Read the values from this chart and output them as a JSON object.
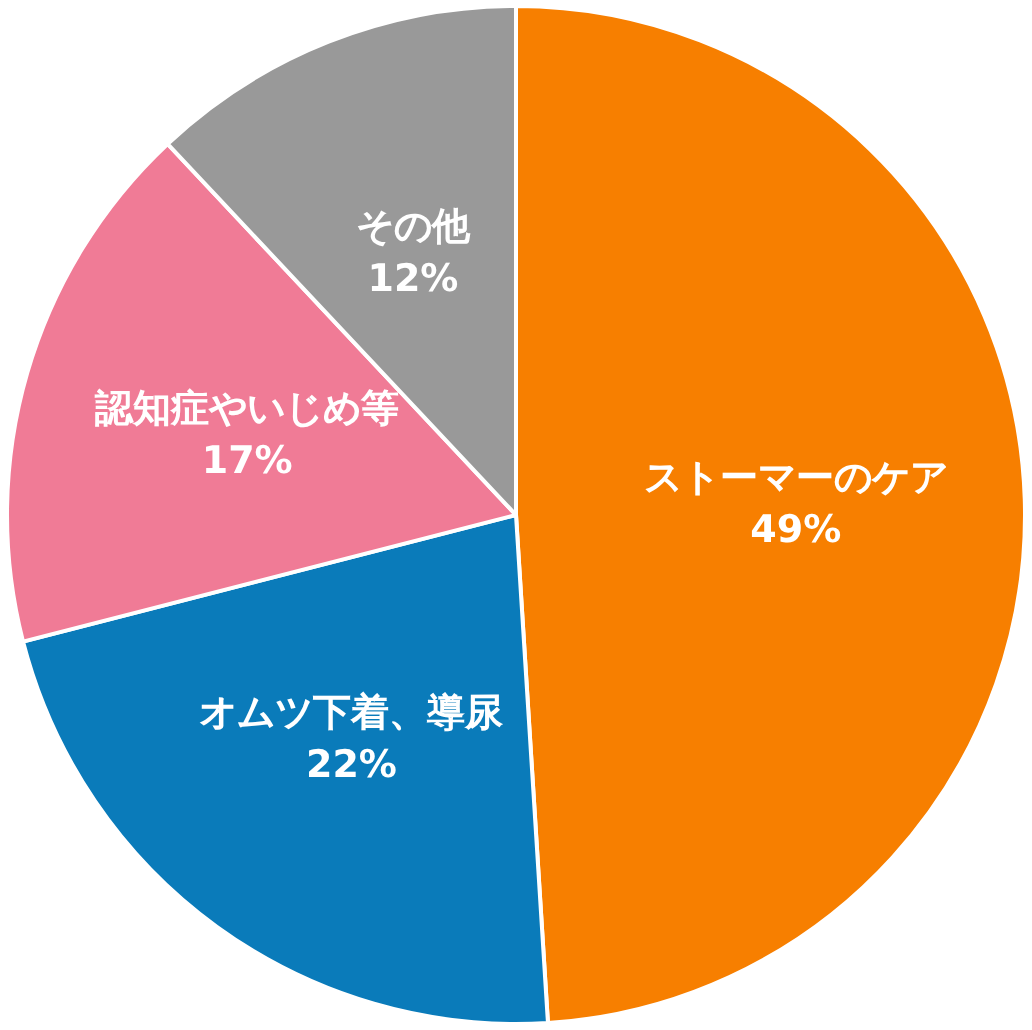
{
  "chart_data": {
    "type": "pie",
    "categories": [
      "ストーマーのケア",
      "オムツ下着、導尿",
      "認知症やいじめ等",
      "その他"
    ],
    "values": [
      49,
      22,
      17,
      12
    ],
    "colors": [
      "#f77f00",
      "#0a7bba",
      "#f07b96",
      "#999999"
    ],
    "value_labels": [
      "49%",
      "22%",
      "17%",
      "12%"
    ],
    "legend": false
  }
}
